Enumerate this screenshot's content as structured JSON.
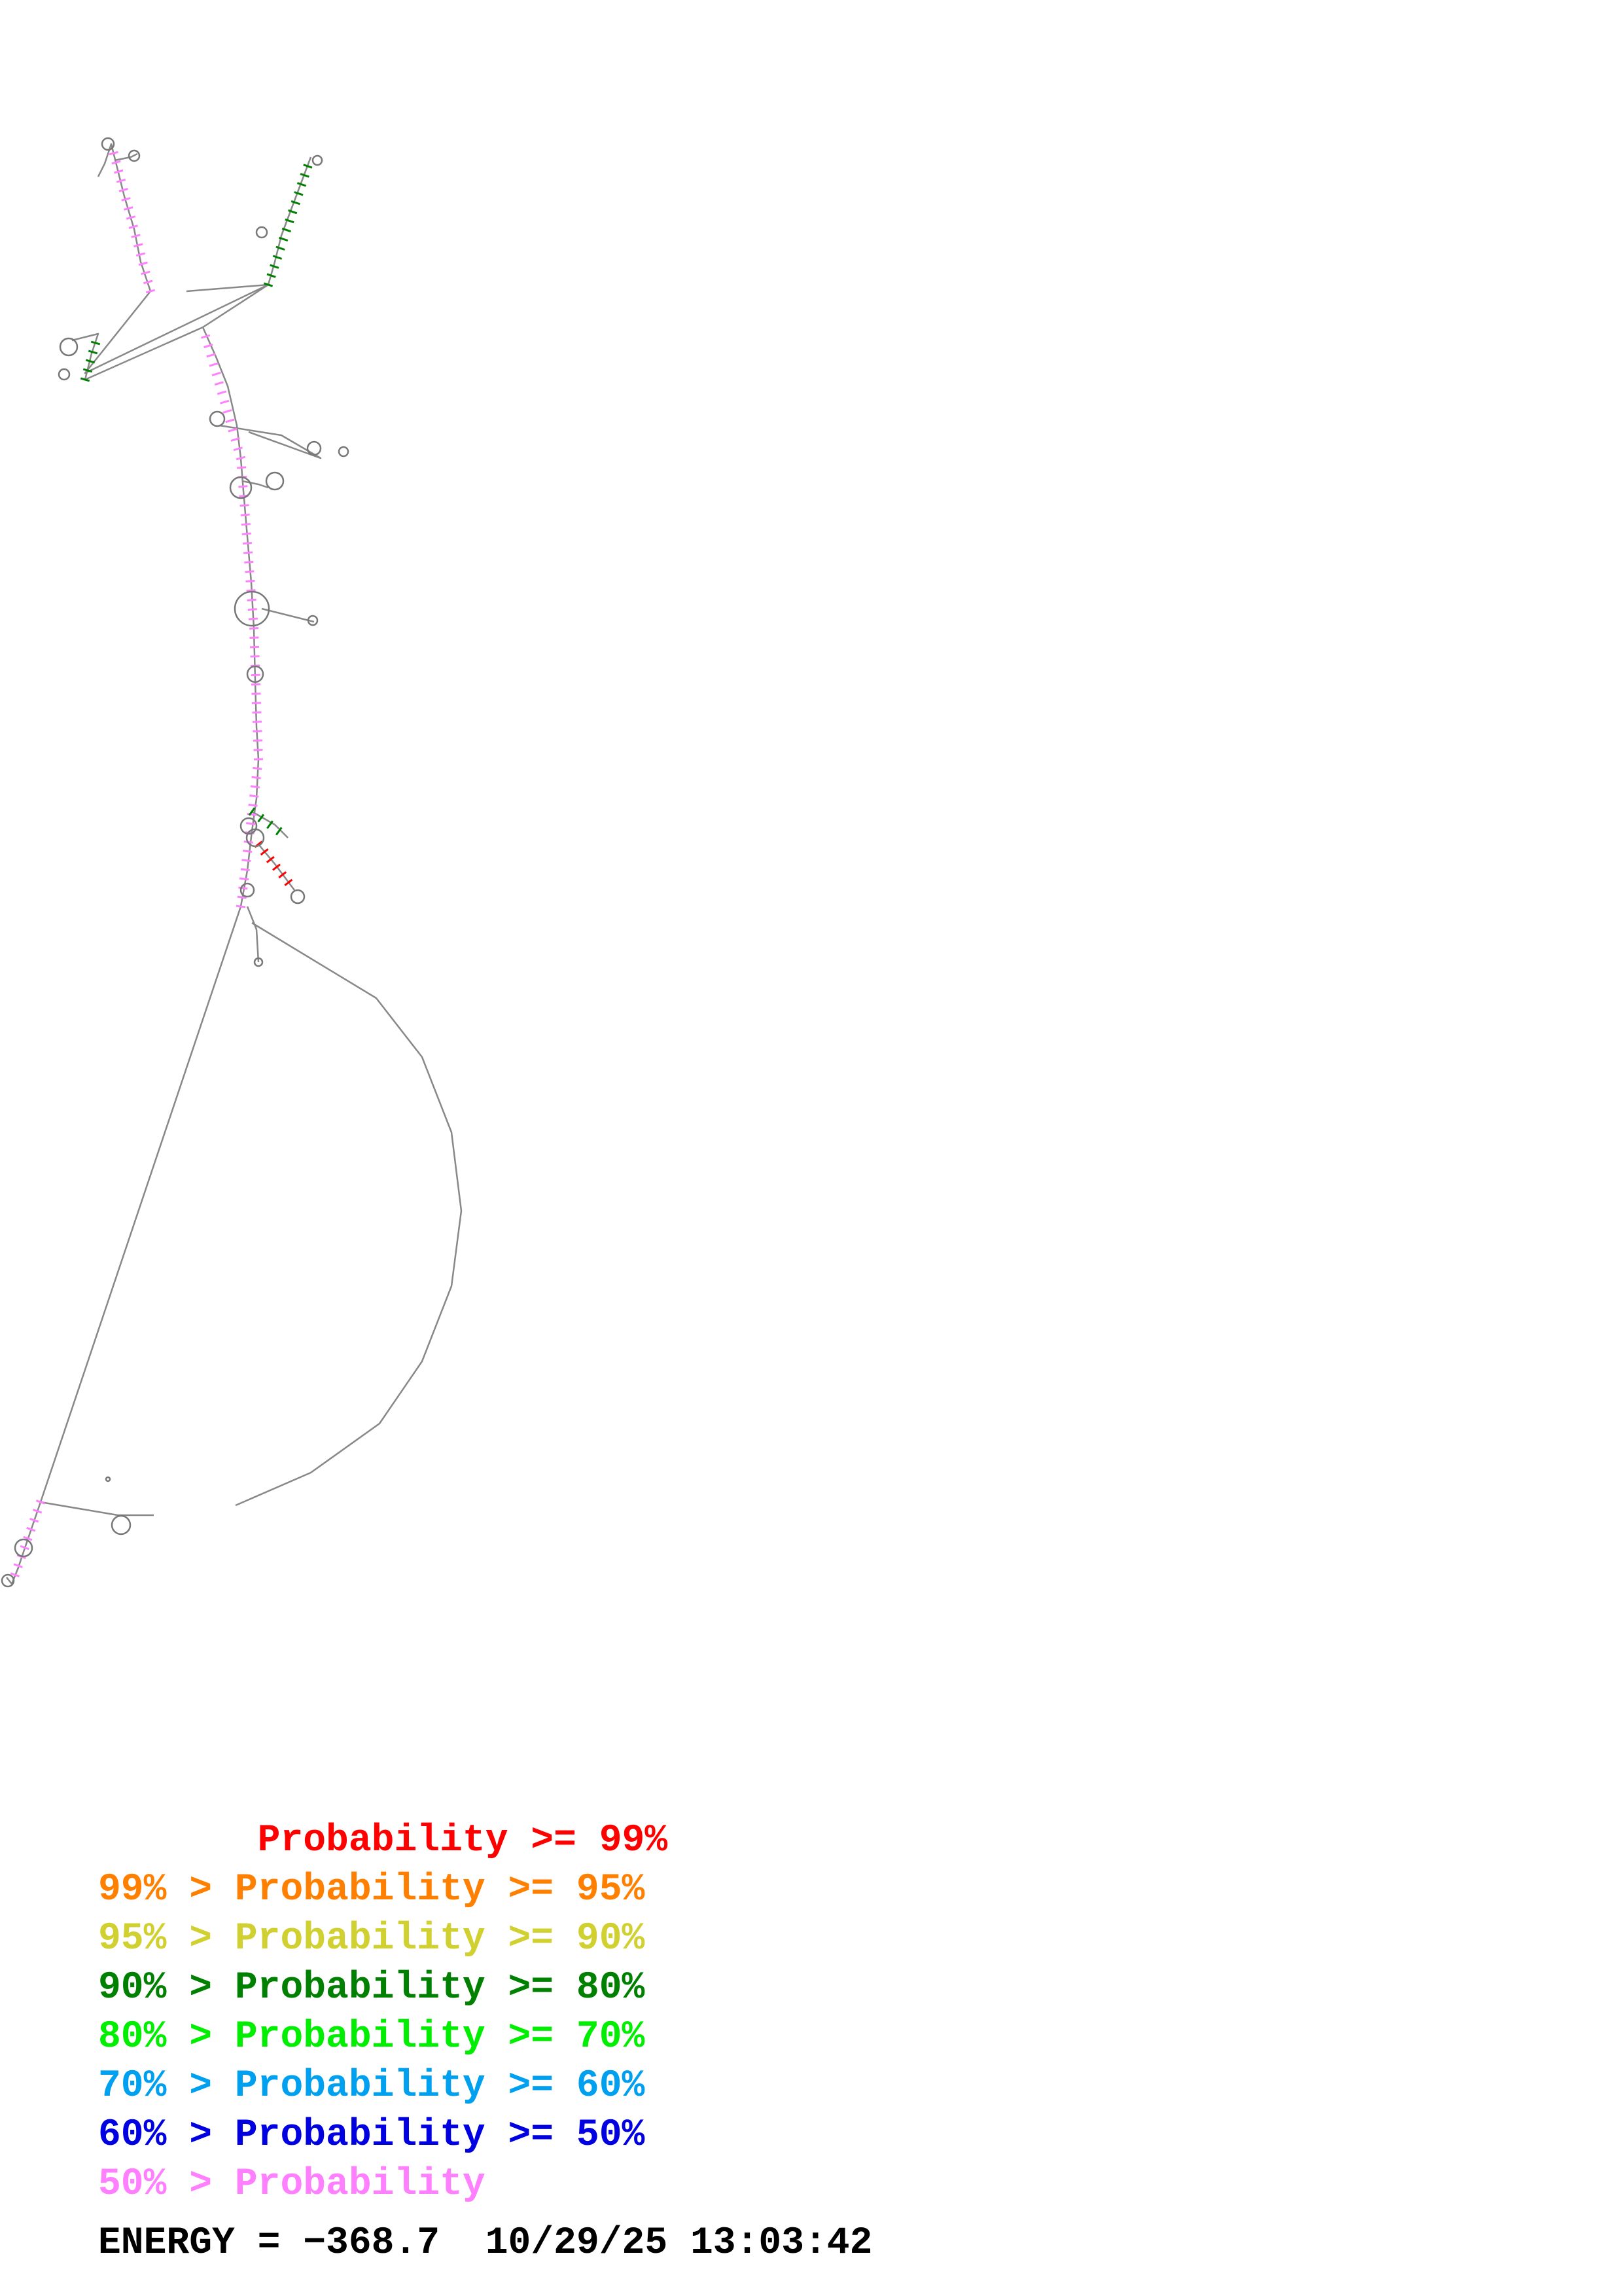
{
  "legend": [
    {
      "text": "       Probability >= 99%",
      "color": "#ff0000"
    },
    {
      "text": "99% > Probability >= 95%",
      "color": "#ff8000"
    },
    {
      "text": "95% > Probability >= 90%",
      "color": "#d0d030"
    },
    {
      "text": "90% > Probability >= 80%",
      "color": "#008000"
    },
    {
      "text": "80% > Probability >= 70%",
      "color": "#00ee00"
    },
    {
      "text": "70% > Probability >= 60%",
      "color": "#00a0f0"
    },
    {
      "text": "60% > Probability >= 50%",
      "color": "#0000e0"
    },
    {
      "text": "50% > Probability",
      "color": "#ff80ff"
    }
  ],
  "energy_label": "ENERGY = −368.7",
  "timestamp": "10/29/25 13:03:42",
  "colors": {
    "backbone": "#888888",
    "pair_default": "#ff80ff",
    "pair_high": "#ff0000",
    "pair_mid": "#008000"
  }
}
